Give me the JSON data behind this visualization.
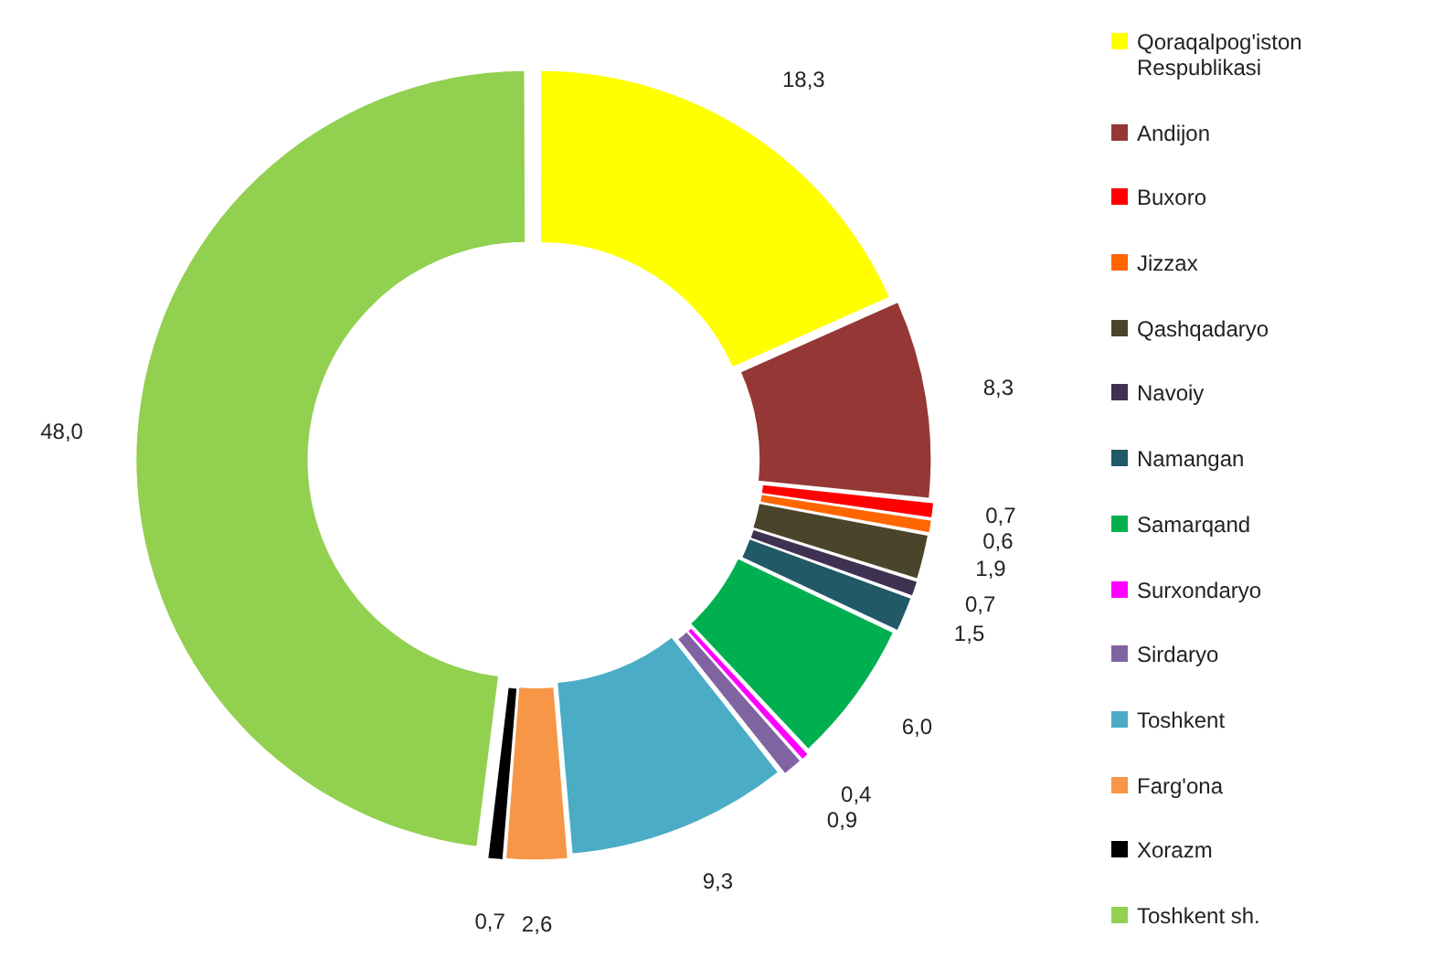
{
  "chart_data": {
    "type": "donut",
    "categories": [
      "Qoraqalpog'iston Respublikasi",
      "Andijon",
      "Buxoro",
      "Jizzax",
      "Qashqadaryo",
      "Navoiy",
      "Namangan",
      "Samarqand",
      "Surxondaryo",
      "Sirdaryo",
      "Toshkent",
      "Farg'ona",
      "Xorazm",
      "Toshkent sh."
    ],
    "values": [
      18.3,
      8.3,
      0.7,
      0.6,
      1.9,
      0.7,
      1.5,
      6.0,
      0.4,
      0.9,
      9.3,
      2.6,
      0.7,
      48.0
    ],
    "value_labels": [
      "18,3",
      "8,3",
      "0,7",
      "0,6",
      "1,9",
      "0,7",
      "1,5",
      "6,0",
      "0,4",
      "0,9",
      "9,3",
      "2,6",
      "0,7",
      "48,0"
    ],
    "colors": [
      "#ffff00",
      "#953735",
      "#ff0000",
      "#ff6600",
      "#4a452a",
      "#3f3151",
      "#215967",
      "#00b050",
      "#ff00ff",
      "#8064a2",
      "#4bacc6",
      "#f79646",
      "#000000",
      "#92d050"
    ],
    "legend": "right"
  }
}
